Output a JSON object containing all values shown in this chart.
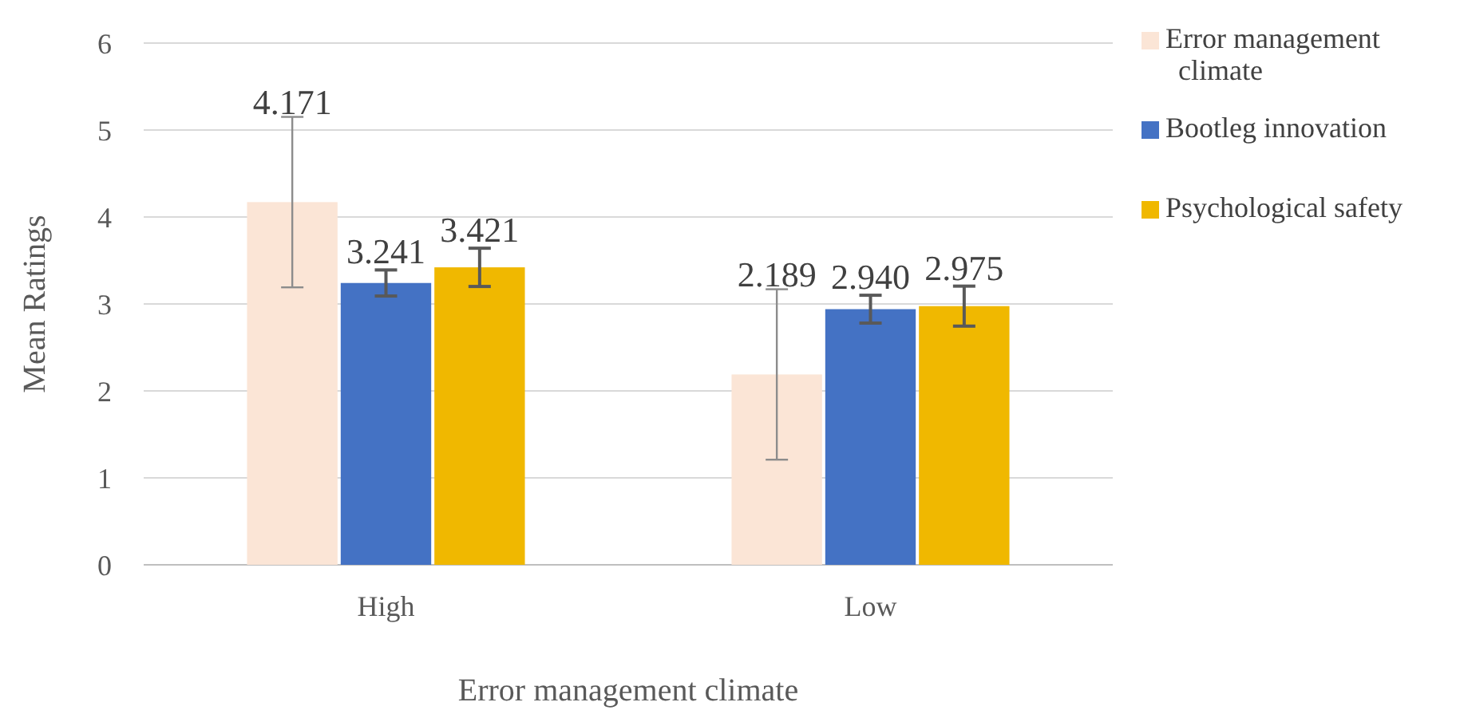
{
  "chart_data": {
    "type": "bar",
    "xlabel": "Error management climate",
    "ylabel": "Mean Ratings",
    "categories": [
      "High",
      "Low"
    ],
    "series": [
      {
        "name": "Error management climate",
        "color": "#fbe5d6",
        "values": [
          4.171,
          2.189
        ],
        "errors": [
          0.98,
          0.98
        ]
      },
      {
        "name": "Bootleg innovation",
        "color": "#4472c4",
        "values": [
          3.241,
          2.94
        ],
        "errors": [
          0.15,
          0.16
        ]
      },
      {
        "name": "Psychological safety",
        "color": "#f0b800",
        "values": [
          3.421,
          2.975
        ],
        "errors": [
          0.22,
          0.23
        ]
      }
    ],
    "value_labels": [
      [
        "4.171",
        "2.189"
      ],
      [
        "3.241",
        "2.940"
      ],
      [
        "3.421",
        "2.975"
      ]
    ],
    "ylim": [
      0,
      6
    ],
    "yticks": [
      0,
      1,
      2,
      3,
      4,
      5,
      6
    ],
    "grid": "y",
    "legend": "right"
  }
}
